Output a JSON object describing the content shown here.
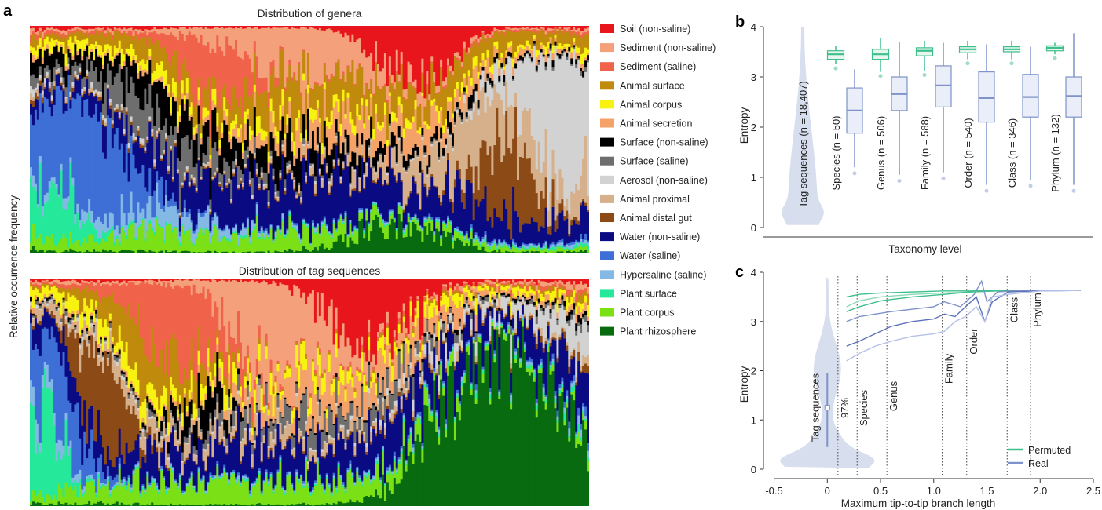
{
  "panel_labels": {
    "a": "a",
    "b": "b",
    "c": "c"
  },
  "panel_a": {
    "ylabel": "Relative occurrence frequency",
    "top_title": "Distribution of genera",
    "bottom_title": "Distribution of tag sequences",
    "legend": [
      {
        "label": "Soil (non-saline)",
        "color": "#e8161c"
      },
      {
        "label": "Sediment (non-saline)",
        "color": "#f4a07a"
      },
      {
        "label": "Sediment (saline)",
        "color": "#f0624a"
      },
      {
        "label": "Animal surface",
        "color": "#c08b0c"
      },
      {
        "label": "Animal corpus",
        "color": "#f7f20f"
      },
      {
        "label": "Animal secretion",
        "color": "#f5a269"
      },
      {
        "label": "Surface (non-saline)",
        "color": "#000000"
      },
      {
        "label": "Surface (saline)",
        "color": "#6e6e6e"
      },
      {
        "label": "Aerosol (non-saline)",
        "color": "#d2d2d2"
      },
      {
        "label": "Animal proximal",
        "color": "#d6b08a"
      },
      {
        "label": "Animal distal gut",
        "color": "#8c4a16"
      },
      {
        "label": "Water (non-saline)",
        "color": "#0a0a82"
      },
      {
        "label": "Water (saline)",
        "color": "#3d6fd6"
      },
      {
        "label": "Hypersaline (saline)",
        "color": "#84b9e6"
      },
      {
        "label": "Plant surface",
        "color": "#25e89a"
      },
      {
        "label": "Plant corpus",
        "color": "#7be016"
      },
      {
        "label": "Plant rhizosphere",
        "color": "#086b10"
      }
    ]
  },
  "chart_data": [
    {
      "type": "box",
      "panel": "b",
      "xlabel": "Taxonomy level",
      "ylabel": "Entropy",
      "ylim": [
        0,
        4
      ],
      "yticks": [
        "0",
        "1",
        "2",
        "3",
        "4"
      ],
      "violin": {
        "label": "Tag sequences (n = 18,407)",
        "range": [
          0.05,
          4.0
        ]
      },
      "categories": [
        "Species (n = 50)",
        "Genus (n = 506)",
        "Family (n = 588)",
        "Order (n = 540)",
        "Class (n = 346)",
        "Phylum (n = 132)"
      ],
      "series": [
        {
          "name": "Permuted",
          "color": "#3dbf8c",
          "boxes": [
            {
              "min": 3.25,
              "q1": 3.35,
              "median": 3.45,
              "q3": 3.52,
              "max": 3.62
            },
            {
              "min": 3.1,
              "q1": 3.35,
              "median": 3.45,
              "q3": 3.55,
              "max": 3.78
            },
            {
              "min": 3.12,
              "q1": 3.42,
              "median": 3.52,
              "q3": 3.58,
              "max": 3.72
            },
            {
              "min": 3.35,
              "q1": 3.48,
              "median": 3.55,
              "q3": 3.6,
              "max": 3.72
            },
            {
              "min": 3.35,
              "q1": 3.5,
              "median": 3.55,
              "q3": 3.6,
              "max": 3.72
            },
            {
              "min": 3.45,
              "q1": 3.52,
              "median": 3.58,
              "q3": 3.62,
              "max": 3.68
            }
          ]
        },
        {
          "name": "Real",
          "color": "#7f92c9",
          "boxes": [
            {
              "min": 1.2,
              "q1": 1.88,
              "median": 2.33,
              "q3": 2.78,
              "max": 3.15
            },
            {
              "min": 1.05,
              "q1": 2.33,
              "median": 2.66,
              "q3": 3.0,
              "max": 3.7
            },
            {
              "min": 1.1,
              "q1": 2.4,
              "median": 2.83,
              "q3": 3.22,
              "max": 3.68
            },
            {
              "min": 0.85,
              "q1": 2.1,
              "median": 2.58,
              "q3": 3.1,
              "max": 3.65
            },
            {
              "min": 0.95,
              "q1": 2.2,
              "median": 2.6,
              "q3": 3.05,
              "max": 3.6
            },
            {
              "min": 0.85,
              "q1": 2.2,
              "median": 2.62,
              "q3": 3.0,
              "max": 3.87
            }
          ]
        }
      ]
    },
    {
      "type": "line",
      "panel": "c",
      "xlabel": "Maximum tip-to-tip branch length",
      "ylabel": "Entropy",
      "xlim": [
        -0.6,
        2.5
      ],
      "ylim": [
        0,
        4
      ],
      "xticks": [
        "-0.5",
        "0",
        "0.5",
        "1.0",
        "1.5",
        "2.0",
        "2.5"
      ],
      "yticks": [
        "0",
        "1",
        "2",
        "3",
        "4"
      ],
      "violin_label": "Tag sequences",
      "violin_box": {
        "median": 1.25,
        "low": 0.45,
        "high": 1.95
      },
      "vlines": [
        {
          "label": "97%",
          "x": 0.1
        },
        {
          "label": "Species",
          "x": 0.28
        },
        {
          "label": "Genus",
          "x": 0.56
        },
        {
          "label": "Family",
          "x": 1.08
        },
        {
          "label": "Order",
          "x": 1.31
        },
        {
          "label": "Class",
          "x": 1.69
        },
        {
          "label": "Phylum",
          "x": 1.91
        }
      ],
      "legend": [
        "Permuted",
        "Real"
      ],
      "series": [
        {
          "name": "Permuted",
          "color": "#3dbf8c",
          "x": [
            0.18,
            0.3,
            0.5,
            0.8,
            1.1,
            1.35,
            1.6,
            2.0,
            2.38
          ],
          "y": [
            3.5,
            3.55,
            3.58,
            3.6,
            3.62,
            3.62,
            3.63,
            3.63,
            3.63
          ]
        },
        {
          "name": "Permuted",
          "color": "#8ad9b6",
          "x": [
            0.18,
            0.3,
            0.5,
            0.8,
            1.1,
            1.35,
            1.6,
            2.0,
            2.38
          ],
          "y": [
            3.3,
            3.42,
            3.5,
            3.55,
            3.58,
            3.6,
            3.62,
            3.63,
            3.63
          ]
        },
        {
          "name": "Permuted",
          "color": "#3dbf8c",
          "x": [
            0.18,
            0.3,
            0.5,
            0.8,
            1.1,
            1.35,
            1.6,
            2.0,
            2.38
          ],
          "y": [
            3.2,
            3.3,
            3.42,
            3.5,
            3.55,
            3.6,
            3.62,
            3.63,
            3.63
          ]
        },
        {
          "name": "Real",
          "color": "#7f92c9",
          "x": [
            0.18,
            0.3,
            0.45,
            0.6,
            0.8,
            1.0,
            1.1,
            1.25,
            1.38,
            1.45,
            1.5,
            1.6,
            1.75,
            2.0,
            2.38
          ],
          "y": [
            3.0,
            3.1,
            3.15,
            3.2,
            3.25,
            3.3,
            3.4,
            3.3,
            3.55,
            3.82,
            3.4,
            3.6,
            3.62,
            3.63,
            3.63
          ]
        },
        {
          "name": "Real",
          "color": "#5d71b8",
          "x": [
            0.18,
            0.3,
            0.45,
            0.6,
            0.8,
            1.0,
            1.1,
            1.2,
            1.3,
            1.4,
            1.48,
            1.55,
            1.7,
            2.0,
            2.38
          ],
          "y": [
            2.5,
            2.6,
            2.75,
            2.9,
            3.0,
            3.05,
            3.15,
            3.1,
            3.3,
            3.5,
            3.0,
            3.4,
            3.6,
            3.62,
            3.63
          ]
        },
        {
          "name": "Real",
          "color": "#b4c0e6",
          "x": [
            0.18,
            0.3,
            0.45,
            0.6,
            0.8,
            1.0,
            1.1,
            1.2,
            1.3,
            1.4,
            1.48,
            1.55,
            1.7,
            2.0,
            2.38
          ],
          "y": [
            2.2,
            2.35,
            2.5,
            2.6,
            2.7,
            2.75,
            2.8,
            3.0,
            3.1,
            3.3,
            3.0,
            3.5,
            3.55,
            3.62,
            3.63
          ]
        }
      ]
    }
  ]
}
